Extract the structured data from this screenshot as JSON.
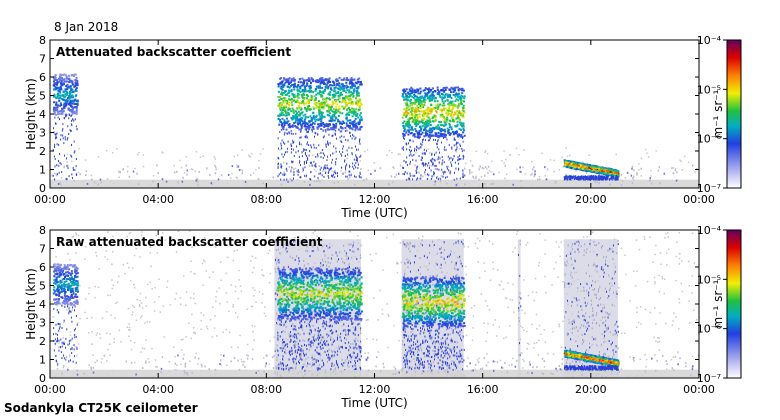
{
  "date": "8 Jan 2018",
  "footer": "Sodankyla CT25K ceilometer",
  "chart_data": [
    {
      "type": "heatmap",
      "title": "Attenuated backscatter coefficient",
      "xlabel": "Time (UTC)",
      "ylabel": "Height (km)",
      "x_ticks": [
        "00:00",
        "04:00",
        "08:00",
        "12:00",
        "16:00",
        "20:00",
        "00:00"
      ],
      "y_ticks": [
        "0",
        "1",
        "2",
        "3",
        "4",
        "5",
        "6",
        "7",
        "8"
      ],
      "xlim_hours": [
        0,
        24
      ],
      "ylim_km": [
        0,
        8
      ],
      "colorbar": {
        "label": "m⁻¹ sr⁻¹",
        "ticks": [
          "10⁻⁴",
          "10⁻⁵",
          "10⁻⁶",
          "10⁻⁷"
        ],
        "scale": "log",
        "range": [
          1e-07,
          0.0001
        ]
      },
      "features": [
        {
          "name": "cloud",
          "t_start": 0.1,
          "t_end": 1.0,
          "h_base": 4.0,
          "h_top": 6.2,
          "intensity": 0.45
        },
        {
          "name": "cloud",
          "t_start": 8.4,
          "t_end": 11.5,
          "h_base": 3.2,
          "h_top": 6.0,
          "intensity": 0.65
        },
        {
          "name": "cloud",
          "t_start": 13.0,
          "t_end": 15.3,
          "h_base": 2.8,
          "h_top": 5.5,
          "intensity": 0.7
        },
        {
          "name": "low-cloud",
          "t_start": 19.0,
          "t_end": 21.0,
          "h_base": 0.6,
          "h_top": 1.5,
          "intensity": 0.9
        }
      ]
    },
    {
      "type": "heatmap",
      "title": "Raw attenuated backscatter coefficient",
      "xlabel": "Time (UTC)",
      "ylabel": "Height (km)",
      "x_ticks": [
        "00:00",
        "04:00",
        "08:00",
        "12:00",
        "16:00",
        "20:00",
        "00:00"
      ],
      "y_ticks": [
        "0",
        "1",
        "2",
        "3",
        "4",
        "5",
        "6",
        "7",
        "8"
      ],
      "xlim_hours": [
        0,
        24
      ],
      "ylim_km": [
        0,
        8
      ],
      "colorbar": {
        "label": "m⁻¹ sr⁻¹",
        "ticks": [
          "10⁻⁴",
          "10⁻⁵",
          "10⁻⁶",
          "10⁻⁷"
        ],
        "scale": "log",
        "range": [
          1e-07,
          0.0001
        ]
      },
      "noise_columns_hours": [
        [
          8.3,
          11.5
        ],
        [
          13.0,
          15.3
        ],
        [
          17.3,
          17.4
        ],
        [
          19.0,
          21.0
        ]
      ],
      "features": [
        {
          "name": "cloud",
          "t_start": 0.1,
          "t_end": 1.0,
          "h_base": 4.0,
          "h_top": 6.2,
          "intensity": 0.45
        },
        {
          "name": "cloud",
          "t_start": 8.4,
          "t_end": 11.5,
          "h_base": 3.2,
          "h_top": 6.0,
          "intensity": 0.65
        },
        {
          "name": "cloud",
          "t_start": 13.0,
          "t_end": 15.3,
          "h_base": 2.8,
          "h_top": 5.5,
          "intensity": 0.7
        },
        {
          "name": "low-cloud",
          "t_start": 19.0,
          "t_end": 21.0,
          "h_base": 0.6,
          "h_top": 1.5,
          "intensity": 0.9
        }
      ]
    }
  ]
}
